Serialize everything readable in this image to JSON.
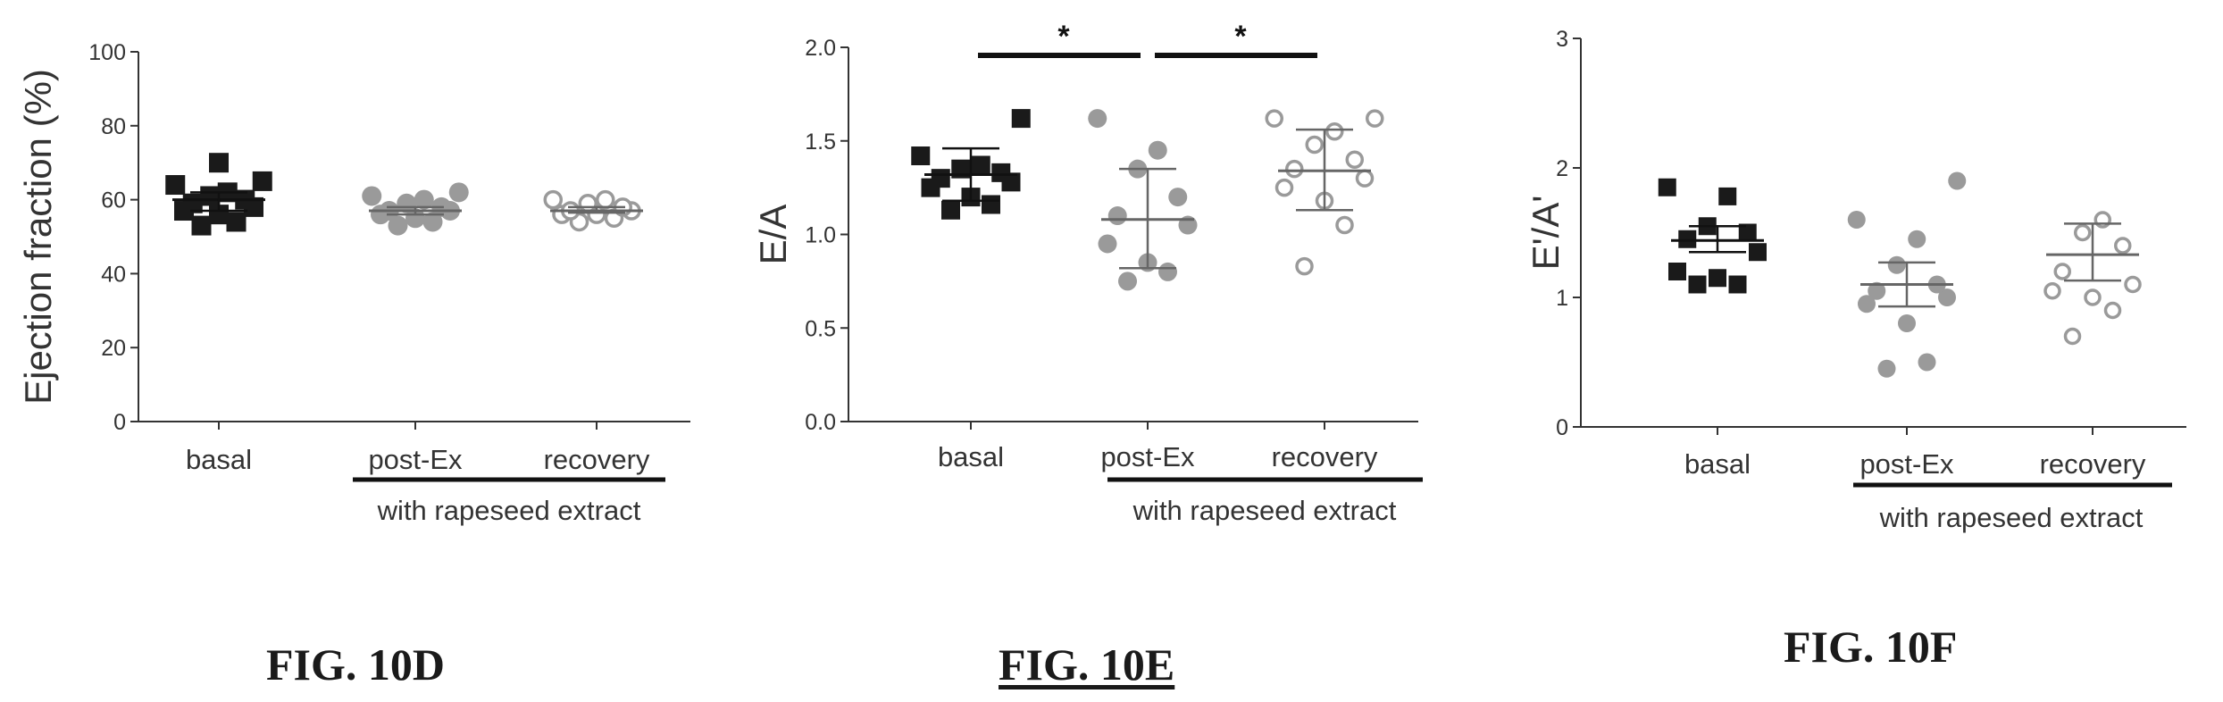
{
  "figures": {
    "d_caption": "FIG. 10D",
    "e_caption": "FIG. 10E",
    "f_caption": "FIG. 10F"
  },
  "colors": {
    "basal": "#1a1a1a",
    "post_ex": "#9a9a9a",
    "recovery": "#9a9a9a",
    "axis": "#333333",
    "text": "#333333"
  },
  "chart_data": [
    {
      "id": "fig10d",
      "type": "scatter",
      "title": "",
      "xlabel": "",
      "ylabel": "Ejection fraction (%)",
      "ylim": [
        0,
        100
      ],
      "yticks": [
        "0",
        "20",
        "40",
        "60",
        "80",
        "100"
      ],
      "ytick_values": [
        0,
        20,
        40,
        60,
        80,
        100
      ],
      "categories": [
        "basal",
        "post-Ex",
        "recovery"
      ],
      "group_label": "with rapeseed extract",
      "markers": [
        "filled-square",
        "filled-circle",
        "open-circle"
      ],
      "series": [
        {
          "category": "basal",
          "mean": 60,
          "sem_low": 57,
          "sem_high": 62,
          "values": [
            53,
            54,
            56,
            57,
            58,
            59,
            60,
            61,
            62,
            64,
            65,
            70
          ]
        },
        {
          "category": "post-Ex",
          "mean": 57,
          "sem_low": 56,
          "sem_high": 58,
          "values": [
            53,
            54,
            55,
            56,
            57,
            57,
            58,
            59,
            60,
            61,
            62
          ]
        },
        {
          "category": "recovery",
          "mean": 57,
          "sem_low": 56.5,
          "sem_high": 58,
          "values": [
            54,
            55,
            56,
            56,
            57,
            57,
            58,
            59,
            60,
            60
          ]
        }
      ]
    },
    {
      "id": "fig10e",
      "type": "scatter",
      "title": "",
      "xlabel": "",
      "ylabel": "E/A",
      "ylim": [
        0,
        2
      ],
      "yticks": [
        "0.0",
        "0.5",
        "1.0",
        "1.5",
        "2.0"
      ],
      "ytick_values": [
        0,
        0.5,
        1.0,
        1.5,
        2.0
      ],
      "categories": [
        "basal",
        "post-Ex",
        "recovery"
      ],
      "group_label": "with rapeseed extract",
      "markers": [
        "filled-square",
        "filled-circle",
        "open-circle"
      ],
      "significance": [
        {
          "from": "basal",
          "to": "post-Ex",
          "label": "*"
        },
        {
          "from": "post-Ex",
          "to": "recovery",
          "label": "*"
        }
      ],
      "series": [
        {
          "category": "basal",
          "mean": 1.32,
          "sd_low": 1.18,
          "sd_high": 1.46,
          "values": [
            1.13,
            1.16,
            1.2,
            1.25,
            1.28,
            1.3,
            1.33,
            1.35,
            1.37,
            1.42,
            1.62
          ]
        },
        {
          "category": "post-Ex",
          "mean": 1.08,
          "sd_low": 0.82,
          "sd_high": 1.35,
          "values": [
            0.75,
            0.8,
            0.85,
            0.95,
            1.05,
            1.1,
            1.2,
            1.35,
            1.45,
            1.62
          ]
        },
        {
          "category": "recovery",
          "mean": 1.34,
          "sd_low": 1.13,
          "sd_high": 1.56,
          "values": [
            0.83,
            1.05,
            1.18,
            1.25,
            1.3,
            1.35,
            1.4,
            1.48,
            1.55,
            1.62,
            1.62
          ]
        }
      ]
    },
    {
      "id": "fig10f",
      "type": "scatter",
      "title": "",
      "xlabel": "",
      "ylabel": "E'/A'",
      "ylim": [
        0,
        3
      ],
      "yticks": [
        "0",
        "1",
        "2",
        "3"
      ],
      "ytick_values": [
        0,
        1,
        2,
        3
      ],
      "categories": [
        "basal",
        "post-Ex",
        "recovery"
      ],
      "group_label": "with rapeseed extract",
      "markers": [
        "filled-square",
        "filled-circle",
        "open-circle"
      ],
      "series": [
        {
          "category": "basal",
          "mean": 1.44,
          "sem_low": 1.35,
          "sem_high": 1.55,
          "values": [
            1.1,
            1.1,
            1.15,
            1.2,
            1.35,
            1.45,
            1.5,
            1.55,
            1.78,
            1.85
          ]
        },
        {
          "category": "post-Ex",
          "mean": 1.1,
          "sem_low": 0.93,
          "sem_high": 1.27,
          "values": [
            0.45,
            0.5,
            0.8,
            0.95,
            1.0,
            1.05,
            1.1,
            1.25,
            1.45,
            1.6,
            1.9
          ]
        },
        {
          "category": "recovery",
          "mean": 1.33,
          "sem_low": 1.13,
          "sem_high": 1.57,
          "values": [
            0.7,
            0.9,
            1.0,
            1.05,
            1.1,
            1.2,
            1.4,
            1.5,
            1.6
          ]
        }
      ]
    }
  ]
}
